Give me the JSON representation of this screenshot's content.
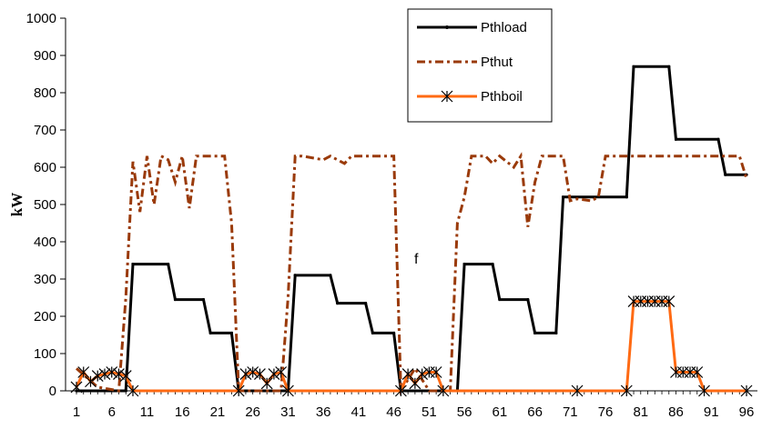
{
  "chart_data": {
    "type": "line",
    "title": "",
    "xlabel": "",
    "ylabel": "kW",
    "ylim": [
      0,
      1000
    ],
    "xlim": [
      1,
      96
    ],
    "yticks": [
      0,
      100,
      200,
      300,
      400,
      500,
      600,
      700,
      800,
      900,
      1000
    ],
    "xticks": [
      1,
      6,
      11,
      16,
      21,
      26,
      31,
      36,
      41,
      46,
      51,
      56,
      61,
      66,
      71,
      76,
      81,
      86,
      91,
      96
    ],
    "grid": false,
    "legend_position": "top-right",
    "annotation": "f",
    "series": [
      {
        "name": "Pthload",
        "color": "#000000",
        "style": "solid",
        "points": [
          [
            1,
            0
          ],
          [
            8,
            0
          ],
          [
            9,
            340
          ],
          [
            14,
            340
          ],
          [
            15,
            245
          ],
          [
            19,
            245
          ],
          [
            20,
            155
          ],
          [
            23,
            155
          ],
          [
            24,
            0
          ],
          [
            31,
            0
          ],
          [
            32,
            310
          ],
          [
            37,
            310
          ],
          [
            38,
            235
          ],
          [
            42,
            235
          ],
          [
            43,
            155
          ],
          [
            46,
            155
          ],
          [
            47,
            0
          ],
          [
            55,
            0
          ],
          [
            56,
            340
          ],
          [
            60,
            340
          ],
          [
            61,
            245
          ],
          [
            65,
            245
          ],
          [
            66,
            155
          ],
          [
            69,
            155
          ],
          [
            70,
            520
          ],
          [
            79,
            520
          ],
          [
            80,
            870
          ],
          [
            85,
            870
          ],
          [
            86,
            675
          ],
          [
            92,
            675
          ],
          [
            93,
            580
          ],
          [
            96,
            580
          ]
        ]
      },
      {
        "name": "Pthut",
        "color": "#9a3a0a",
        "style": "dashdot",
        "points": [
          [
            1,
            60
          ],
          [
            4,
            10
          ],
          [
            7,
            0
          ],
          [
            8,
            250
          ],
          [
            9,
            615
          ],
          [
            10,
            480
          ],
          [
            11,
            630
          ],
          [
            12,
            500
          ],
          [
            13,
            630
          ],
          [
            14,
            620
          ],
          [
            15,
            560
          ],
          [
            16,
            630
          ],
          [
            17,
            490
          ],
          [
            18,
            630
          ],
          [
            20,
            630
          ],
          [
            22,
            630
          ],
          [
            23,
            450
          ],
          [
            24,
            0
          ],
          [
            26,
            0
          ],
          [
            29,
            0
          ],
          [
            30,
            0
          ],
          [
            31,
            250
          ],
          [
            32,
            630
          ],
          [
            33,
            630
          ],
          [
            36,
            620
          ],
          [
            37,
            630
          ],
          [
            39,
            610
          ],
          [
            40,
            630
          ],
          [
            46,
            630
          ],
          [
            47,
            0
          ],
          [
            49,
            60
          ],
          [
            51,
            0
          ],
          [
            54,
            0
          ],
          [
            55,
            450
          ],
          [
            56,
            520
          ],
          [
            57,
            630
          ],
          [
            59,
            630
          ],
          [
            60,
            610
          ],
          [
            61,
            630
          ],
          [
            63,
            600
          ],
          [
            64,
            630
          ],
          [
            65,
            440
          ],
          [
            66,
            560
          ],
          [
            67,
            630
          ],
          [
            70,
            630
          ],
          [
            71,
            510
          ],
          [
            72,
            515
          ],
          [
            74,
            510
          ],
          [
            75,
            520
          ],
          [
            76,
            630
          ],
          [
            85,
            630
          ],
          [
            95,
            630
          ],
          [
            96,
            570
          ]
        ]
      },
      {
        "name": "Pthboil",
        "color": "#ff6a13",
        "style": "solid-star",
        "points": [
          [
            1,
            10
          ],
          [
            2,
            50
          ],
          [
            3,
            25
          ],
          [
            4,
            40
          ],
          [
            5,
            45
          ],
          [
            6,
            50
          ],
          [
            7,
            45
          ],
          [
            8,
            40
          ],
          [
            9,
            0
          ],
          [
            24,
            0
          ],
          [
            25,
            45
          ],
          [
            26,
            50
          ],
          [
            27,
            45
          ],
          [
            28,
            20
          ],
          [
            29,
            45
          ],
          [
            30,
            50
          ],
          [
            31,
            0
          ],
          [
            47,
            0
          ],
          [
            48,
            45
          ],
          [
            49,
            20
          ],
          [
            50,
            45
          ],
          [
            51,
            50
          ],
          [
            52,
            50
          ],
          [
            53,
            0
          ],
          [
            72,
            0
          ],
          [
            79,
            0
          ],
          [
            80,
            240
          ],
          [
            81,
            240
          ],
          [
            82,
            240
          ],
          [
            83,
            240
          ],
          [
            84,
            240
          ],
          [
            85,
            240
          ],
          [
            86,
            50
          ],
          [
            87,
            50
          ],
          [
            88,
            50
          ],
          [
            89,
            50
          ],
          [
            90,
            0
          ],
          [
            96,
            0
          ]
        ]
      }
    ]
  }
}
